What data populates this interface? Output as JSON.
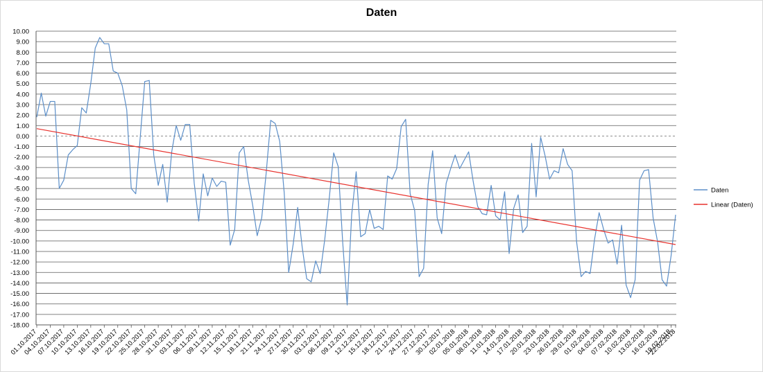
{
  "chart_data": {
    "type": "line",
    "title": "Daten",
    "xlabel": "",
    "ylabel": "",
    "ylim": [
      -18,
      10
    ],
    "ytick_step": 1,
    "grid": true,
    "legend_position": "right",
    "x_tick_labels": [
      "01.10.2017",
      "04.10.2017",
      "07.10.2017",
      "10.10.2017",
      "13.10.2017",
      "16.10.2017",
      "19.10.2017",
      "22.10.2017",
      "25.10.2017",
      "28.10.2017",
      "31.10.2017",
      "03.11.2017",
      "06.11.2017",
      "09.11.2017",
      "12.11.2017",
      "15.11.2017",
      "18.11.2017",
      "21.11.2017",
      "24.11.2017",
      "27.11.2017",
      "30.11.2017",
      "03.12.2017",
      "06.12.2017",
      "09.12.2017",
      "12.12.2017",
      "15.12.2017",
      "18.12.2017",
      "21.12.2017",
      "24.12.2017",
      "27.12.2017",
      "30.12.2017",
      "02.01.2018",
      "05.01.2018",
      "08.01.2018",
      "11.01.2018",
      "14.01.2018",
      "17.01.2018",
      "20.01.2018",
      "23.01.2018",
      "26.01.2018",
      "29.01.2018",
      "01.02.2018",
      "04.02.2018",
      "07.02.2018",
      "10.02.2018",
      "13.02.2018",
      "16.02.2018",
      "19.02.2018",
      "22.02.2018"
    ],
    "series": [
      {
        "name": "Daten",
        "color": "#5b8ec8",
        "values": [
          1.8,
          4.1,
          1.9,
          3.3,
          3.3,
          -5.0,
          -4.2,
          -1.8,
          -1.3,
          -0.9,
          2.7,
          2.2,
          5.0,
          8.4,
          9.4,
          8.8,
          8.8,
          6.2,
          6.0,
          4.8,
          2.5,
          -5.0,
          -5.5,
          -0.1,
          5.2,
          5.3,
          -1.8,
          -4.7,
          -2.7,
          -6.3,
          -1.5,
          1.0,
          -0.4,
          1.1,
          1.1,
          -4.5,
          -8.1,
          -3.6,
          -5.7,
          -4.0,
          -4.8,
          -4.3,
          -4.4,
          -10.4,
          -8.9,
          -1.6,
          -1.0,
          -4.2,
          -6.6,
          -9.5,
          -7.8,
          -3.5,
          1.5,
          1.2,
          -0.5,
          -5.4,
          -13.0,
          -10.3,
          -6.8,
          -10.6,
          -13.6,
          -13.9,
          -11.9,
          -13.1,
          -9.9,
          -6.0,
          -1.6,
          -2.9,
          -10.1,
          -16.1,
          -7.5,
          -3.4,
          -9.6,
          -9.3,
          -7.0,
          -8.8,
          -8.6,
          -8.9,
          -3.8,
          -4.1,
          -3.1,
          0.9,
          1.6,
          -5.5,
          -7.1,
          -13.4,
          -12.6,
          -4.6,
          -1.4,
          -7.8,
          -9.3,
          -4.5,
          -3.1,
          -1.8,
          -3.1,
          -2.3,
          -1.5,
          -4.3,
          -6.7,
          -7.4,
          -7.5,
          -4.7,
          -7.6,
          -8.0,
          -5.3,
          -11.2,
          -6.9,
          -5.6,
          -9.2,
          -8.6,
          -0.7,
          -5.8,
          -0.1,
          -1.9,
          -4.1,
          -3.3,
          -3.5,
          -1.2,
          -2.7,
          -3.3,
          -10.1,
          -13.4,
          -12.9,
          -13.1,
          -9.8,
          -7.3,
          -8.9,
          -10.2,
          -9.9,
          -12.2,
          -8.5,
          -14.2,
          -15.4,
          -13.7,
          -4.2,
          -3.3,
          -3.2,
          -7.8,
          -10.1,
          -13.7,
          -14.3,
          -11.4,
          -7.5
        ]
      },
      {
        "name": "Linear (Daten)",
        "color": "#e8312c",
        "trendline": true
      }
    ]
  }
}
